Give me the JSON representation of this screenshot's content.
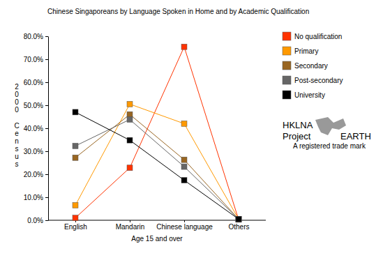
{
  "chart_data": {
    "type": "line",
    "title": "Chinese Singaporeans by Language Spoken in Home and by Academic Qualification",
    "x_label": "Age 15 and over",
    "y_label": "2000 Census",
    "categories": [
      "English",
      "Mandarin",
      "Chinese language",
      "Others"
    ],
    "series": [
      {
        "name": "No qualification",
        "color": "#ff3300",
        "values": [
          1.0,
          22.8,
          75.4,
          0.3
        ]
      },
      {
        "name": "Primary",
        "color": "#ff9900",
        "values": [
          6.5,
          50.5,
          42.0,
          0.5
        ]
      },
      {
        "name": "Secondary",
        "color": "#996622",
        "values": [
          27.2,
          46.0,
          26.3,
          0.5
        ]
      },
      {
        "name": "Post-secondary",
        "color": "#666666",
        "values": [
          32.3,
          43.8,
          23.3,
          0.5
        ]
      },
      {
        "name": "University",
        "color": "#000000",
        "values": [
          47.0,
          34.8,
          17.4,
          0.5
        ]
      }
    ],
    "ylim": [
      0,
      80
    ],
    "yticks": [
      {
        "value": 0,
        "label": "0.0%"
      },
      {
        "value": 10,
        "label": "10.0%"
      },
      {
        "value": 20,
        "label": "20.0%"
      },
      {
        "value": 30,
        "label": "30.0%"
      },
      {
        "value": 40,
        "label": "40.0%"
      },
      {
        "value": 50,
        "label": "50.0%"
      },
      {
        "value": 60,
        "label": "60.0%"
      },
      {
        "value": 70,
        "label": "70.0%"
      },
      {
        "value": 80,
        "label": "80.0%"
      }
    ],
    "grid": false,
    "legend": "right",
    "marker": "square",
    "annotations": [
      "HKLNA",
      "Project",
      "EARTH",
      "A registered trade mark"
    ]
  }
}
